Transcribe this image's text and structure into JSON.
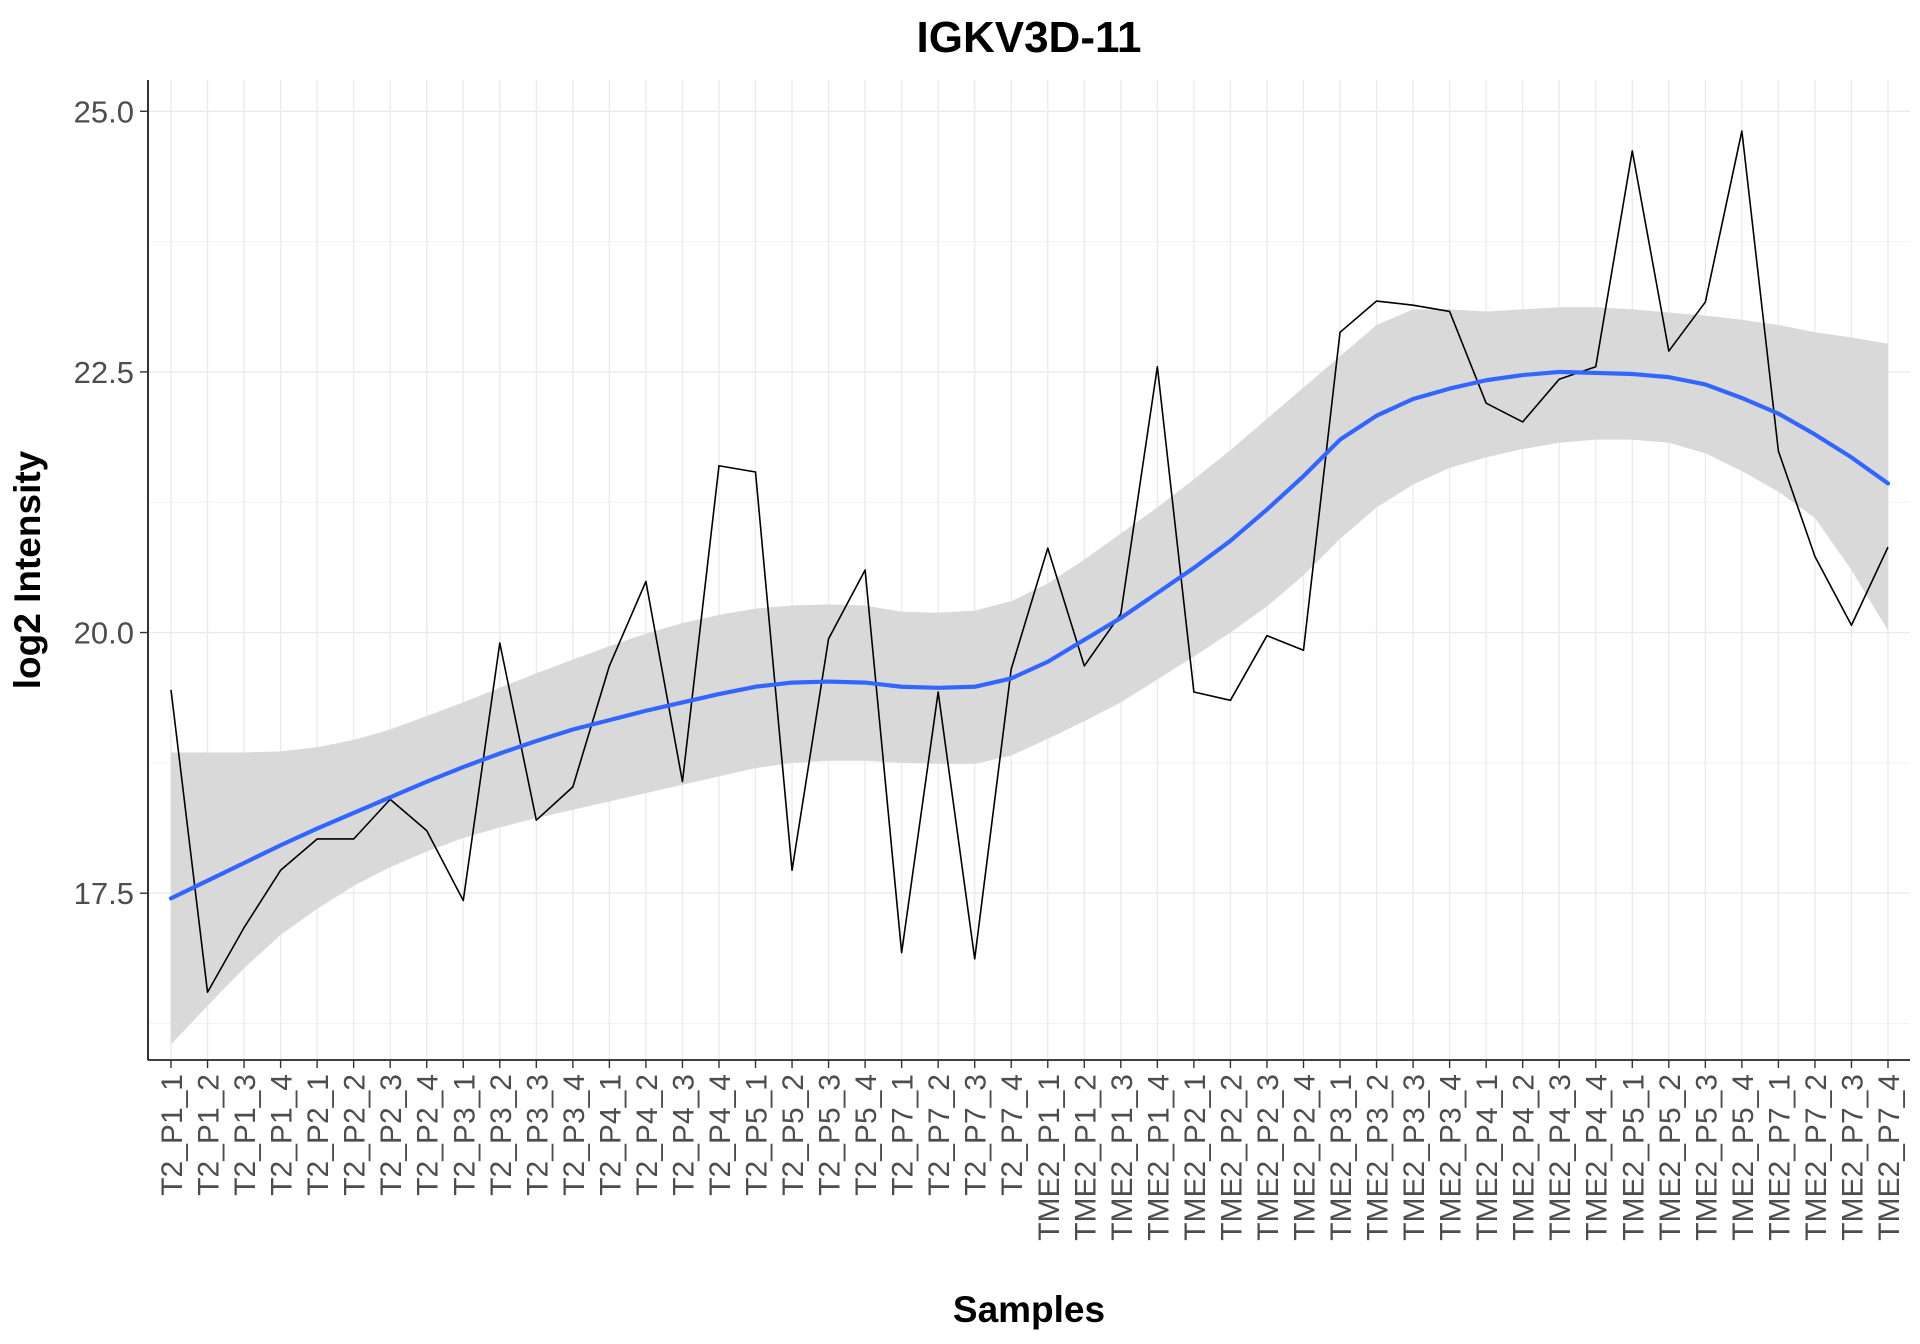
{
  "chart_data": {
    "type": "line",
    "title": "IGKV3D-11",
    "xlabel": "Samples",
    "ylabel": "log2 Intensity",
    "ylim": [
      15.9,
      25.3
    ],
    "yticks": [
      17.5,
      20.0,
      22.5,
      25.0
    ],
    "ytick_labels": [
      "17.5",
      "20.0",
      "22.5",
      "25.0"
    ],
    "grid": true,
    "categories": [
      "T2_P1_1",
      "T2_P1_2",
      "T2_P1_3",
      "T2_P1_4",
      "T2_P2_1",
      "T2_P2_2",
      "T2_P2_3",
      "T2_P2_4",
      "T2_P3_1",
      "T2_P3_2",
      "T2_P3_3",
      "T2_P3_4",
      "T2_P4_1",
      "T2_P4_2",
      "T2_P4_3",
      "T2_P4_4",
      "T2_P5_1",
      "T2_P5_2",
      "T2_P5_3",
      "T2_P5_4",
      "T2_P7_1",
      "T2_P7_2",
      "T2_P7_3",
      "T2_P7_4",
      "TME2_P1_1",
      "TME2_P1_2",
      "TME2_P1_3",
      "TME2_P1_4",
      "TME2_P2_1",
      "TME2_P2_2",
      "TME2_P2_3",
      "TME2_P2_4",
      "TME2_P3_1",
      "TME2_P3_2",
      "TME2_P3_3",
      "TME2_P3_4",
      "TME2_P4_1",
      "TME2_P4_2",
      "TME2_P4_3",
      "TME2_P4_4",
      "TME2_P5_1",
      "TME2_P5_2",
      "TME2_P5_3",
      "TME2_P5_4",
      "TME2_P7_1",
      "TME2_P7_2",
      "TME2_P7_3",
      "TME2_P7_4"
    ],
    "series": [
      {
        "kind": "observed",
        "color": "#000000",
        "values": [
          19.45,
          16.55,
          17.17,
          17.72,
          18.02,
          18.02,
          18.4,
          18.1,
          17.43,
          19.9,
          18.2,
          18.52,
          19.68,
          20.49,
          18.57,
          21.6,
          21.54,
          17.72,
          19.94,
          20.6,
          16.93,
          19.43,
          16.87,
          19.65,
          20.81,
          19.68,
          20.18,
          22.55,
          19.43,
          19.35,
          19.97,
          19.83,
          22.88,
          23.18,
          23.14,
          23.08,
          22.2,
          22.02,
          22.43,
          22.55,
          24.62,
          22.7,
          23.17,
          24.81,
          21.74,
          20.73,
          20.07,
          20.82
        ]
      },
      {
        "kind": "smooth",
        "color": "#3366ff",
        "band_color": "#d9d9d9",
        "values": [
          17.45,
          17.62,
          17.79,
          17.96,
          18.12,
          18.27,
          18.42,
          18.57,
          18.71,
          18.84,
          18.96,
          19.07,
          19.16,
          19.25,
          19.33,
          19.41,
          19.48,
          19.52,
          19.53,
          19.52,
          19.48,
          19.47,
          19.48,
          19.56,
          19.72,
          19.93,
          20.14,
          20.38,
          20.62,
          20.88,
          21.18,
          21.5,
          21.85,
          22.08,
          22.24,
          22.34,
          22.42,
          22.47,
          22.5,
          22.49,
          22.48,
          22.45,
          22.38,
          22.25,
          22.1,
          21.9,
          21.68,
          21.43
        ],
        "band_lower": [
          16.05,
          16.42,
          16.78,
          17.1,
          17.35,
          17.57,
          17.75,
          17.9,
          18.03,
          18.13,
          18.22,
          18.3,
          18.38,
          18.46,
          18.54,
          18.62,
          18.7,
          18.75,
          18.77,
          18.77,
          18.75,
          18.74,
          18.74,
          18.82,
          18.98,
          19.15,
          19.33,
          19.55,
          19.77,
          20.0,
          20.25,
          20.55,
          20.9,
          21.2,
          21.42,
          21.58,
          21.68,
          21.76,
          21.82,
          21.85,
          21.85,
          21.82,
          21.72,
          21.55,
          21.35,
          21.1,
          20.6,
          20.02
        ],
        "band_upper": [
          18.85,
          18.85,
          18.85,
          18.86,
          18.9,
          18.97,
          19.07,
          19.2,
          19.33,
          19.47,
          19.61,
          19.74,
          19.87,
          19.99,
          20.09,
          20.17,
          20.23,
          20.26,
          20.27,
          20.26,
          20.2,
          20.19,
          20.21,
          20.3,
          20.47,
          20.7,
          20.95,
          21.2,
          21.47,
          21.75,
          22.05,
          22.35,
          22.65,
          22.95,
          23.1,
          23.1,
          23.08,
          23.1,
          23.12,
          23.12,
          23.1,
          23.07,
          23.04,
          23.0,
          22.95,
          22.88,
          22.83,
          22.77
        ]
      }
    ]
  }
}
